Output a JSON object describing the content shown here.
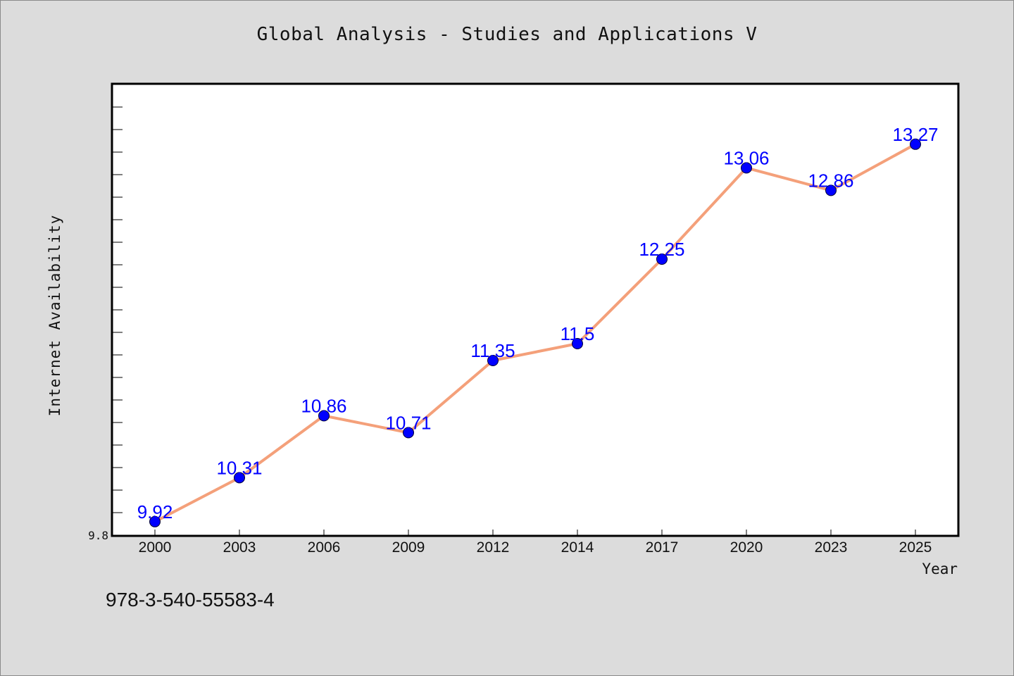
{
  "footer": {
    "code": "978-3-540-55583-4"
  },
  "chart_data": {
    "type": "line",
    "title": "Global Analysis - Studies and Applications V",
    "xlabel": "Year",
    "ylabel": "Internet Availability",
    "categories": [
      "2000",
      "2003",
      "2006",
      "2009",
      "2012",
      "2014",
      "2017",
      "2020",
      "2023",
      "2025"
    ],
    "values": [
      9.92,
      10.31,
      10.86,
      10.71,
      11.35,
      11.5,
      12.25,
      13.06,
      12.86,
      13.27
    ],
    "value_labels": [
      "9.92",
      "10.31",
      "10.86",
      "10.71",
      "11.35",
      "11.5",
      "12.25",
      "13.06",
      "12.86",
      "13.27"
    ],
    "ylim": [
      9.8,
      13.8
    ],
    "y_tick_labels": [
      "9.8"
    ],
    "grid": false,
    "line_color": "#f4a07a",
    "marker_color": "#0000ff",
    "label_color": "#0000ff",
    "background": "#dcdcdc",
    "plot_background": "#ffffff"
  }
}
